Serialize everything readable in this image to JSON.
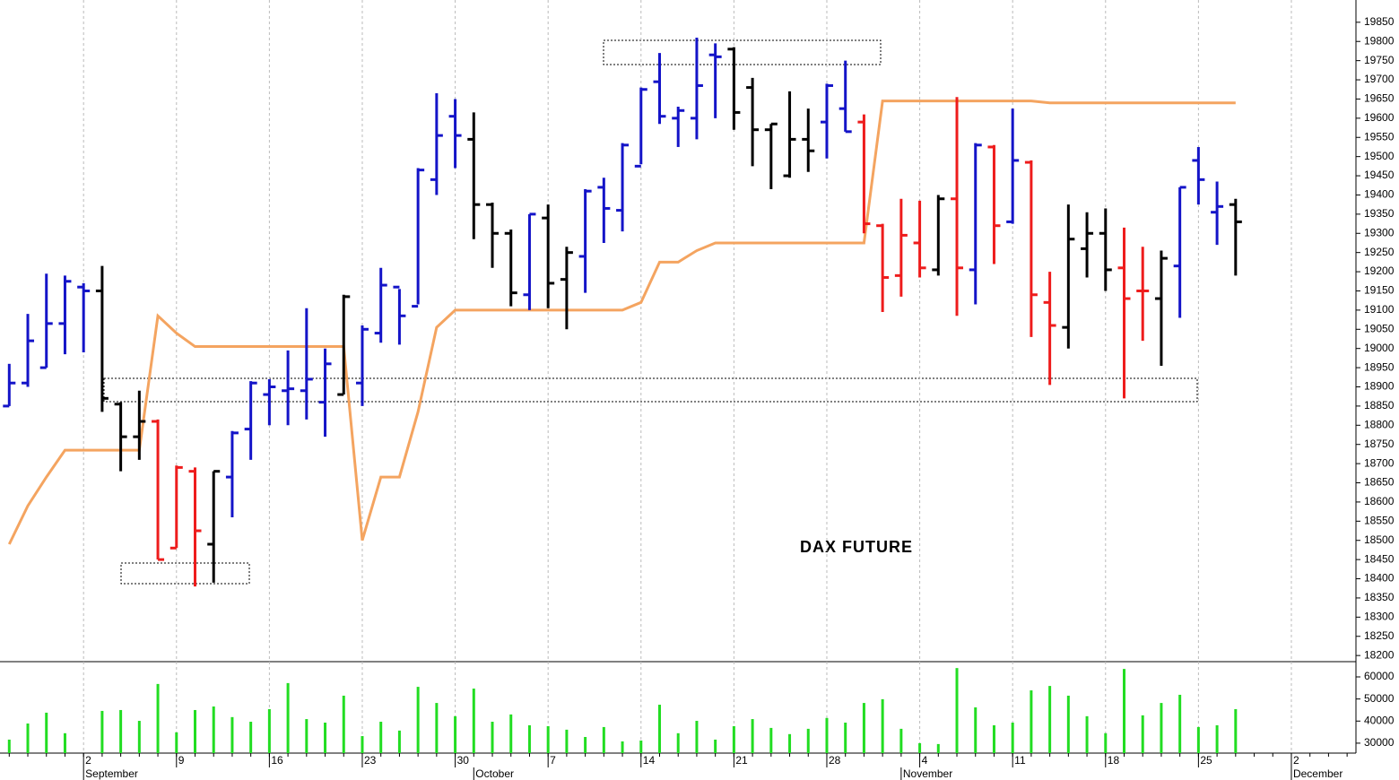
{
  "chart_data": [
    {
      "type": "ohlc",
      "annotation": "DAX FUTURE",
      "categories": [
        null,
        null,
        null,
        null,
        "2",
        null,
        null,
        null,
        null,
        "9",
        null,
        null,
        null,
        null,
        "16",
        null,
        null,
        null,
        null,
        "23",
        null,
        null,
        null,
        null,
        "30",
        null,
        null,
        null,
        null,
        "7",
        null,
        null,
        null,
        null,
        "14",
        null,
        null,
        null,
        null,
        "21",
        null,
        null,
        null,
        null,
        "28",
        null,
        null,
        null,
        null,
        "4",
        null,
        null,
        null,
        null,
        "11",
        null,
        null,
        null,
        null,
        "18",
        null,
        null,
        null,
        null,
        "25",
        null,
        null,
        null,
        null,
        "2",
        null,
        null,
        null
      ],
      "months": [
        null,
        null,
        null,
        null,
        "September",
        null,
        null,
        null,
        null,
        null,
        null,
        null,
        null,
        null,
        null,
        null,
        null,
        null,
        null,
        null,
        null,
        null,
        null,
        null,
        null,
        "October",
        null,
        null,
        null,
        null,
        null,
        null,
        null,
        null,
        null,
        null,
        null,
        null,
        null,
        null,
        null,
        null,
        null,
        null,
        null,
        null,
        null,
        null,
        "November",
        null,
        null,
        null,
        null,
        null,
        null,
        null,
        null,
        null,
        null,
        null,
        null,
        null,
        null,
        null,
        null,
        null,
        null,
        null,
        null,
        "December",
        null,
        null,
        null
      ],
      "open": [
        18850,
        18910,
        18950,
        19065,
        19160,
        19150,
        18855,
        18770,
        18810,
        18480,
        18680,
        18490,
        18665,
        18790,
        18880,
        18890,
        18890,
        18860,
        18880,
        18910,
        19040,
        19160,
        19110,
        19440,
        19605,
        19545,
        19375,
        19300,
        19140,
        19340,
        19180,
        19240,
        19420,
        19360,
        19475,
        19695,
        19600,
        19600,
        19765,
        19780,
        19680,
        19570,
        19450,
        19545,
        19590,
        19625,
        19590,
        19320,
        19190,
        19275,
        19205,
        19390,
        19205,
        19525,
        19330,
        19485,
        19120,
        19055,
        19260,
        19300,
        19210,
        19150,
        19130,
        19215,
        19490,
        19355,
        19375,
        null,
        null,
        null,
        null,
        null,
        null
      ],
      "high": [
        18960,
        19090,
        19195,
        19190,
        19170,
        19215,
        18860,
        18890,
        18815,
        18695,
        18690,
        18680,
        18785,
        18915,
        18920,
        18995,
        19105,
        19000,
        19140,
        19060,
        19210,
        19155,
        19470,
        19665,
        19650,
        19615,
        19380,
        19310,
        19350,
        19375,
        19265,
        19415,
        19445,
        19535,
        19680,
        19770,
        19630,
        19810,
        19795,
        19785,
        19705,
        19585,
        19670,
        19625,
        19690,
        19750,
        19610,
        19325,
        19390,
        19385,
        19400,
        19655,
        19535,
        19530,
        19625,
        19490,
        19200,
        19375,
        19355,
        19365,
        19315,
        19265,
        19255,
        19420,
        19525,
        19435,
        19390,
        null,
        null,
        null,
        null,
        null,
        null
      ],
      "low": [
        18850,
        18900,
        18950,
        18985,
        18990,
        18835,
        18680,
        18710,
        18450,
        18480,
        18380,
        18390,
        18560,
        18710,
        18800,
        18800,
        18815,
        18770,
        18880,
        18850,
        19015,
        19010,
        19115,
        19400,
        19470,
        19285,
        19210,
        19110,
        19100,
        19105,
        19050,
        19145,
        19275,
        19305,
        19480,
        19585,
        19525,
        19545,
        19600,
        19570,
        19475,
        19415,
        19445,
        19460,
        19495,
        19565,
        19300,
        19095,
        19135,
        19185,
        19190,
        19085,
        19115,
        19220,
        19325,
        19030,
        18905,
        19000,
        19185,
        19150,
        18870,
        19020,
        18955,
        19080,
        19375,
        19270,
        19190,
        null,
        null,
        null,
        null,
        null,
        null
      ],
      "close": [
        18910,
        19020,
        19065,
        19175,
        19150,
        18870,
        18770,
        18810,
        18450,
        18690,
        18525,
        18680,
        18780,
        18910,
        18900,
        18895,
        18920,
        18960,
        19135,
        19050,
        19165,
        19085,
        19465,
        19555,
        19555,
        19375,
        19300,
        19145,
        19350,
        19170,
        19250,
        19410,
        19365,
        19530,
        19675,
        19605,
        19620,
        19685,
        19760,
        19615,
        19570,
        19585,
        19545,
        19515,
        19685,
        19565,
        19325,
        19185,
        19295,
        19210,
        19390,
        19210,
        19530,
        19320,
        19490,
        19140,
        19060,
        19285,
        19300,
        19205,
        19130,
        19150,
        19235,
        19420,
        19440,
        19370,
        19330,
        null,
        null,
        null,
        null,
        null,
        null
      ],
      "colors": [
        "#1414c8",
        "#1414c8",
        "#1414c8",
        "#1414c8",
        "#1414c8",
        "#000000",
        "#000000",
        "#000000",
        "#ee1c1c",
        "#ee1c1c",
        "#ee1c1c",
        "#000000",
        "#1414c8",
        "#1414c8",
        "#1414c8",
        "#1414c8",
        "#1414c8",
        "#1414c8",
        "#000000",
        "#1414c8",
        "#1414c8",
        "#1414c8",
        "#1414c8",
        "#1414c8",
        "#1414c8",
        "#000000",
        "#000000",
        "#000000",
        "#1414c8",
        "#000000",
        "#000000",
        "#1414c8",
        "#1414c8",
        "#1414c8",
        "#1414c8",
        "#1414c8",
        "#1414c8",
        "#1414c8",
        "#1414c8",
        "#000000",
        "#000000",
        "#000000",
        "#000000",
        "#000000",
        "#1414c8",
        "#1414c8",
        "#ee1c1c",
        "#ee1c1c",
        "#ee1c1c",
        "#ee1c1c",
        "#000000",
        "#ee1c1c",
        "#1414c8",
        "#ee1c1c",
        "#1414c8",
        "#ee1c1c",
        "#ee1c1c",
        "#000000",
        "#000000",
        "#000000",
        "#ee1c1c",
        "#ee1c1c",
        "#000000",
        "#1414c8",
        "#1414c8",
        "#1414c8",
        "#000000",
        null,
        null,
        null,
        null,
        null,
        null
      ],
      "line": {
        "color": "#f4a460",
        "values": [
          18490,
          18590,
          18665,
          18735,
          18735,
          18735,
          18735,
          18735,
          19085,
          19040,
          19005,
          19005,
          19005,
          19005,
          19005,
          19005,
          19005,
          19005,
          19005,
          18500,
          18665,
          18665,
          18835,
          19055,
          19100,
          19100,
          19100,
          19100,
          19100,
          19100,
          19100,
          19100,
          19100,
          19100,
          19120,
          19225,
          19225,
          19255,
          19275,
          19275,
          19275,
          19275,
          19275,
          19275,
          19275,
          19275,
          19275,
          19645,
          19645,
          19645,
          19645,
          19645,
          19645,
          19645,
          19645,
          19645,
          19640,
          19640,
          19640,
          19640,
          19640,
          19640,
          19640,
          19640,
          19640,
          19640,
          19640,
          null,
          null,
          null,
          null,
          null,
          null
        ]
      },
      "ylim": [
        18184,
        19908
      ],
      "yticks": [
        18200,
        18250,
        18300,
        18350,
        18400,
        18450,
        18500,
        18550,
        18600,
        18650,
        18700,
        18750,
        18800,
        18850,
        18900,
        18950,
        19000,
        19050,
        19100,
        19150,
        19200,
        19250,
        19300,
        19350,
        19400,
        19450,
        19500,
        19550,
        19600,
        19650,
        19700,
        19750,
        19800,
        19850
      ],
      "grid": true
    },
    {
      "type": "bar",
      "color": "#22dd22",
      "values": [
        31600,
        38900,
        43800,
        34500,
        null,
        44600,
        45000,
        40100,
        56800,
        34900,
        45000,
        46600,
        41800,
        39700,
        45400,
        57200,
        40900,
        39300,
        51500,
        33200,
        39700,
        35700,
        55500,
        48200,
        42200,
        54700,
        39700,
        43000,
        38100,
        37700,
        36100,
        32800,
        37300,
        30800,
        31200,
        47400,
        34500,
        40100,
        31600,
        37700,
        40900,
        36900,
        34100,
        36500,
        41400,
        39300,
        48200,
        49900,
        36500,
        30000,
        29600,
        64000,
        46200,
        38100,
        39300,
        53900,
        55900,
        51500,
        42200,
        34500,
        63600,
        42600,
        48200,
        51900,
        37300,
        38100,
        45400,
        null,
        null,
        null,
        null,
        null,
        null
      ],
      "ylim": [
        25500,
        66900
      ],
      "yticks": [
        30000,
        40000,
        50000,
        60000
      ]
    }
  ]
}
